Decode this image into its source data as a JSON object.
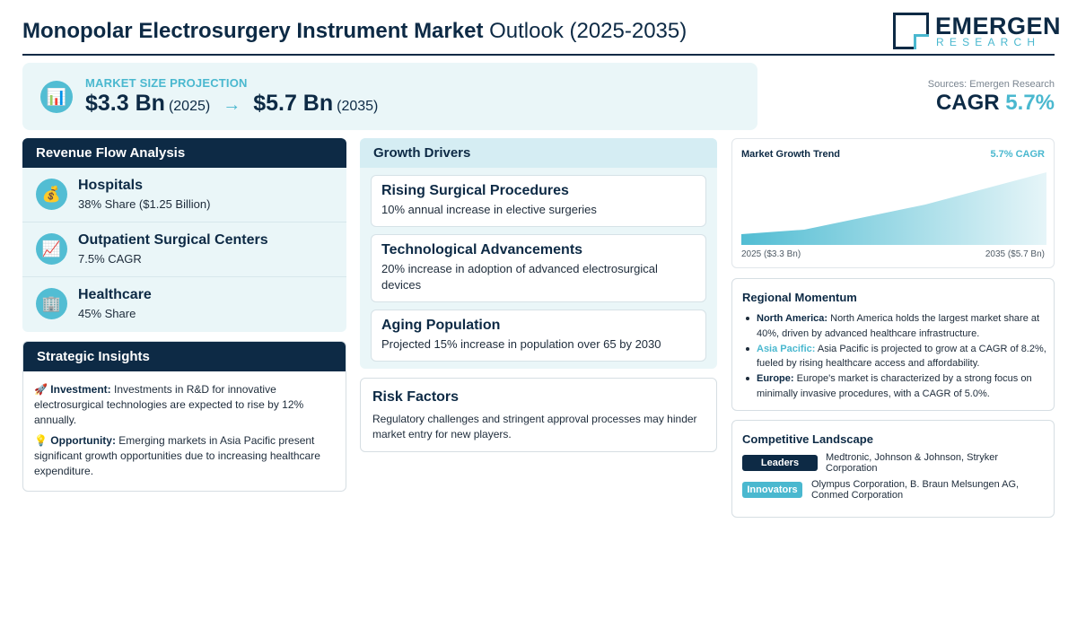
{
  "header": {
    "title_bold": "Monopolar Electrosurgery Instrument Market",
    "title_light": "Outlook (2025-2035)",
    "logo_main": "EMERGEN",
    "logo_sub": "RESEARCH"
  },
  "projection": {
    "icon": "bar-chart-icon",
    "label": "MARKET SIZE PROJECTION",
    "start_value": "$3.3 Bn",
    "start_year": "(2025)",
    "arrow": "→",
    "end_value": "$5.7 Bn",
    "end_year": "(2035)"
  },
  "cagr": {
    "source": "Sources: Emergen Research",
    "label": "CAGR",
    "value": "5.7%"
  },
  "revenue": {
    "heading": "Revenue Flow Analysis",
    "items": [
      {
        "icon": "money-bag-icon",
        "emoji": "💰",
        "title": "Hospitals",
        "detail": "38% Share ($1.25 Billion)"
      },
      {
        "icon": "trend-chart-icon",
        "emoji": "📈",
        "title": "Outpatient Surgical Centers",
        "detail": "7.5% CAGR"
      },
      {
        "icon": "building-icon",
        "emoji": "🏢",
        "title": "Healthcare",
        "detail": "45% Share"
      }
    ]
  },
  "insights": {
    "heading": "Strategic Insights",
    "items": [
      {
        "icon": "rocket-icon",
        "emoji": "🚀",
        "label": "Investment:",
        "text": "Investments in R&D for innovative electrosurgical technologies are expected to rise by 12% annually."
      },
      {
        "icon": "lightbulb-icon",
        "emoji": "💡",
        "label": "Opportunity:",
        "text": "Emerging markets in Asia Pacific present significant growth opportunities due to increasing healthcare expenditure."
      }
    ]
  },
  "drivers": {
    "heading": "Growth Drivers",
    "items": [
      {
        "title": "Rising Surgical Procedures",
        "detail": "10% annual increase in elective surgeries"
      },
      {
        "title": "Technological Advancements",
        "detail": "20% increase in adoption of advanced electrosurgical devices"
      },
      {
        "title": "Aging Population",
        "detail": "Projected 15% increase in population over 65 by 2030"
      }
    ]
  },
  "risk": {
    "heading": "Risk Factors",
    "text": "Regulatory challenges and stringent approval processes may hinder market entry for new players."
  },
  "trend": {
    "title": "Market Growth Trend",
    "cagr_label": "5.7% CAGR",
    "start_label": "2025 ($3.3 Bn)",
    "end_label": "2035 ($5.7 Bn)",
    "colors": {
      "fill_top": "#52bdd3",
      "fill_bottom": "#e6f5f8"
    }
  },
  "regional": {
    "heading": "Regional Momentum",
    "items": [
      {
        "region": "North America:",
        "text": "North America holds the largest market share at 40%, driven by advanced healthcare infrastructure."
      },
      {
        "region": "Asia Pacific:",
        "text": "Asia Pacific is projected to grow at a CAGR of 8.2%, fueled by rising healthcare access and affordability."
      },
      {
        "region": "Europe:",
        "text": "Europe's market is characterized by a strong focus on minimally invasive procedures, with a CAGR of 5.0%."
      }
    ]
  },
  "competitive": {
    "heading": "Competitive Landscape",
    "rows": [
      {
        "badge": "Leaders",
        "companies": "Medtronic, Johnson & Johnson, Stryker Corporation"
      },
      {
        "badge": "Innovators",
        "companies": "Olympus Corporation, B. Braun Melsungen AG, Conmed Corporation"
      }
    ]
  },
  "colors": {
    "navy": "#0d2a45",
    "teal": "#4ab8cf",
    "light_panel": "#eaf6f8"
  }
}
